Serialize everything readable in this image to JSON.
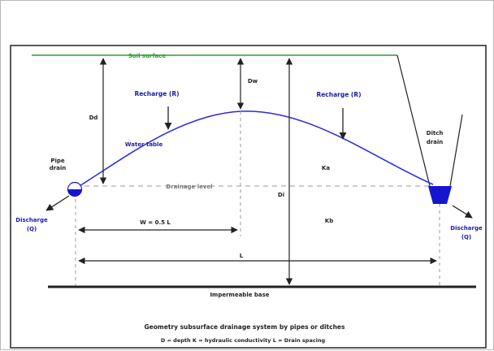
{
  "diagram": {
    "labels": {
      "soil_surface": "Soil surface",
      "recharge_left": "Recharge (R)",
      "recharge_right": "Recharge (R)",
      "water_table": "Water table",
      "pipe_drain_1": "Pipe",
      "pipe_drain_2": "drain",
      "ditch_drain_1": "Ditch",
      "ditch_drain_2": "drain",
      "drainage_level": "Drainage level",
      "dd": "Dd",
      "dw": "Dw",
      "di": "Di",
      "ka": "Ka",
      "kb": "Kb",
      "discharge_left_1": "Discharge",
      "discharge_left_2": "(Q)",
      "discharge_right_1": "Discharge",
      "discharge_right_2": "(Q)",
      "half_spacing": "W = 0.5 L",
      "spacing": "L",
      "impermeable_base": "Impermeable base"
    },
    "caption": {
      "title": "Geometry subsurface drainage system by pipes or ditches",
      "legend": "D = depth   K = hydraulic conductivity   L = Drain spacing"
    },
    "colors": {
      "soil_line": "#2e9e2e",
      "water_table": "#2a2ae0",
      "label_blue": "#1c1ca8",
      "ink": "#222222",
      "dash": "#9a9a9a",
      "border": "#222222",
      "drain_fill": "#1515d0"
    }
  }
}
